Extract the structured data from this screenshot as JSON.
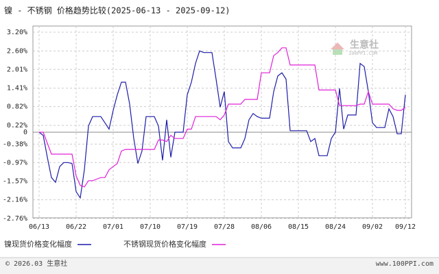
{
  "chart_data": {
    "type": "line",
    "title": "镍 - 不锈钢 价格趋势比较(2025-06-13 - 2025-09-12)",
    "watermark": "生意社",
    "watermark_sub": "100PPI.COM",
    "footer_left": "© 2026.03 生意社",
    "footer_right": "www.100PPI.com",
    "grid": true,
    "ylim": [
      -2.76,
      3.2
    ],
    "yticks": [
      {
        "value": 3.2,
        "label": "3.20%"
      },
      {
        "value": 2.6,
        "label": "2.60%"
      },
      {
        "value": 2.01,
        "label": "2.01%"
      },
      {
        "value": 1.41,
        "label": "1.41%"
      },
      {
        "value": 0.82,
        "label": "0.82%"
      },
      {
        "value": 0.22,
        "label": "0.22%"
      },
      0,
      {
        "value": -0.38,
        "label": "-0.38%"
      },
      {
        "value": -0.97,
        "label": "-0.97%"
      },
      {
        "value": -1.57,
        "label": "-1.57%"
      },
      {
        "value": -2.16,
        "label": "-2.16%"
      },
      {
        "value": -2.76,
        "label": "-2.76%"
      }
    ],
    "categories": [
      "06/13",
      null,
      null,
      null,
      null,
      null,
      null,
      null,
      null,
      "06/22",
      null,
      null,
      null,
      null,
      null,
      null,
      null,
      null,
      "07/01",
      null,
      null,
      null,
      null,
      null,
      null,
      null,
      null,
      "07/10",
      null,
      null,
      null,
      null,
      null,
      null,
      null,
      null,
      "07/19",
      null,
      null,
      null,
      null,
      null,
      null,
      null,
      null,
      "07/28",
      null,
      null,
      null,
      null,
      null,
      null,
      null,
      null,
      "08/06",
      null,
      null,
      null,
      null,
      null,
      null,
      null,
      null,
      "08/15",
      null,
      null,
      null,
      null,
      null,
      null,
      null,
      null,
      "08/24",
      null,
      null,
      null,
      null,
      null,
      null,
      null,
      null,
      "09/02",
      null,
      null,
      null,
      null,
      null,
      null,
      null,
      "09/12"
    ],
    "series": [
      {
        "name": "镍现货价格变化幅度",
        "color": "#1c1ca8",
        "values": [
          0,
          -0.1,
          -0.8,
          -1.45,
          -1.6,
          -1.1,
          -0.97,
          -0.97,
          -1.0,
          -1.9,
          -2.1,
          -1.2,
          0.2,
          0.5,
          0.5,
          0.5,
          0.3,
          0.1,
          0.7,
          1.2,
          1.6,
          1.6,
          0.9,
          -0.2,
          -1.0,
          -0.6,
          0.5,
          0.5,
          0.5,
          0.2,
          -0.9,
          0.4,
          -0.8,
          0,
          0,
          0,
          1.2,
          1.6,
          2.2,
          2.6,
          2.55,
          2.55,
          2.55,
          1.7,
          0.8,
          1.3,
          -0.3,
          -0.5,
          -0.5,
          -0.5,
          -0.2,
          0.4,
          0.6,
          0.5,
          0.45,
          0.45,
          0.45,
          1.3,
          1.8,
          1.9,
          1.7,
          0.05,
          0.05,
          0.05,
          0.05,
          0.05,
          -0.3,
          -0.2,
          -0.75,
          -0.75,
          -0.75,
          -0.2,
          0,
          1.4,
          0.1,
          0.55,
          0.55,
          0.55,
          2.2,
          2.1,
          1.3,
          0.3,
          0.15,
          0.15,
          0.15,
          0.75,
          0.5,
          -0.05,
          -0.05,
          1.2
        ]
      },
      {
        "name": "不锈钢现货价格变化幅度",
        "color": "#e020d8",
        "values": [
          0,
          0,
          -0.35,
          -0.7,
          -0.7,
          -0.7,
          -0.7,
          -0.7,
          -0.7,
          -1.4,
          -1.7,
          -1.75,
          -1.55,
          -1.55,
          -1.5,
          -1.45,
          -1.45,
          -1.2,
          -1.1,
          -1.0,
          -0.6,
          -0.55,
          -0.55,
          -0.55,
          -0.55,
          -0.55,
          -0.55,
          -0.55,
          -0.55,
          -0.25,
          -0.25,
          -0.3,
          -0.1,
          -0.2,
          -0.2,
          -0.2,
          0.1,
          0.1,
          0.5,
          0.5,
          0.5,
          0.5,
          0.5,
          0.5,
          0.4,
          0.55,
          0.9,
          0.9,
          0.9,
          0.9,
          1.05,
          1.05,
          1.05,
          1.05,
          1.9,
          1.9,
          1.9,
          2.45,
          2.55,
          2.7,
          2.7,
          2.15,
          2.15,
          2.15,
          2.15,
          2.15,
          2.15,
          2.15,
          1.35,
          1.35,
          1.35,
          1.35,
          1.35,
          0.85,
          0.85,
          0.85,
          0.85,
          0.85,
          0.9,
          0.9,
          1.3,
          0.9,
          0.9,
          0.9,
          0.9,
          0.9,
          0.75,
          0.7,
          0.7,
          0.8
        ]
      }
    ]
  }
}
